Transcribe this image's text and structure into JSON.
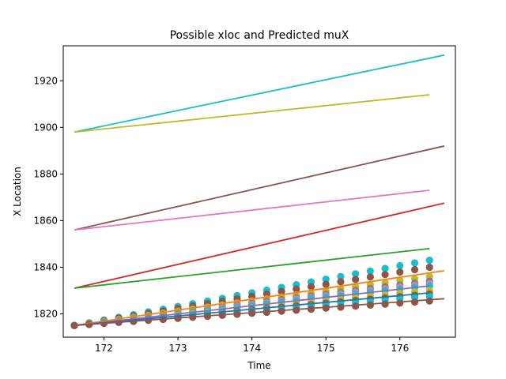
{
  "chart_data": {
    "type": "line",
    "title": "Possible xloc and Predicted muX",
    "xlabel": "Time",
    "ylabel": "X Location",
    "xlim": [
      171.45,
      176.75
    ],
    "ylim": [
      1810,
      1935
    ],
    "xticks": [
      172,
      173,
      174,
      175,
      176
    ],
    "yticks": [
      1820,
      1840,
      1860,
      1880,
      1900,
      1920
    ],
    "grid": false,
    "legend": "none",
    "lines": [
      {
        "color": "#17becf",
        "x": [
          171.6,
          176.6
        ],
        "y": [
          1898,
          1931
        ]
      },
      {
        "color": "#bcbd22",
        "x": [
          171.6,
          176.4
        ],
        "y": [
          1898,
          1914
        ]
      },
      {
        "color": "#8c564b",
        "x": [
          171.6,
          176.6
        ],
        "y": [
          1856,
          1892
        ]
      },
      {
        "color": "#e377c2",
        "x": [
          171.6,
          176.4
        ],
        "y": [
          1856,
          1873
        ]
      },
      {
        "color": "#d62728",
        "x": [
          171.6,
          176.6
        ],
        "y": [
          1831,
          1867.5
        ]
      },
      {
        "color": "#2ca02c",
        "x": [
          171.6,
          176.4
        ],
        "y": [
          1831,
          1848
        ]
      },
      {
        "color": "#ff7f0e",
        "x": [
          171.6,
          176.6
        ],
        "y": [
          1815,
          1838.5
        ]
      },
      {
        "color": "#9467bd",
        "x": [
          171.6,
          176.4
        ],
        "y": [
          1815,
          1832
        ]
      },
      {
        "color": "#1f77b4",
        "x": [
          171.6,
          176.4
        ],
        "y": [
          1815,
          1829
        ]
      },
      {
        "color": "#8c564b",
        "x": [
          171.6,
          176.6
        ],
        "y": [
          1815,
          1826.5
        ]
      }
    ],
    "scatter": {
      "times": [
        171.6,
        171.8,
        172.0,
        172.2,
        172.4,
        172.6,
        172.8,
        173.0,
        173.2,
        173.4,
        173.6,
        173.8,
        174.0,
        174.2,
        174.4,
        174.6,
        174.8,
        175.0,
        175.2,
        175.4,
        175.6,
        175.8,
        176.0,
        176.2,
        176.4
      ],
      "series": [
        {
          "color": "#17becf",
          "start": 1815,
          "end": 1843
        },
        {
          "color": "#8c564b",
          "start": 1815,
          "end": 1840
        },
        {
          "color": "#bcbd22",
          "start": 1815,
          "end": 1836
        },
        {
          "color": "#7f7f7f",
          "start": 1815,
          "end": 1834
        },
        {
          "color": "#e377c2",
          "start": 1815,
          "end": 1833
        },
        {
          "color": "#17becf",
          "start": 1815,
          "end": 1832
        },
        {
          "color": "#bcbd22",
          "start": 1815,
          "end": 1830
        },
        {
          "color": "#8c564b",
          "start": 1815,
          "end": 1828.5
        },
        {
          "color": "#17becf",
          "start": 1815,
          "end": 1827.5
        },
        {
          "color": "#8c564b",
          "start": 1815,
          "end": 1825.5
        }
      ]
    }
  }
}
